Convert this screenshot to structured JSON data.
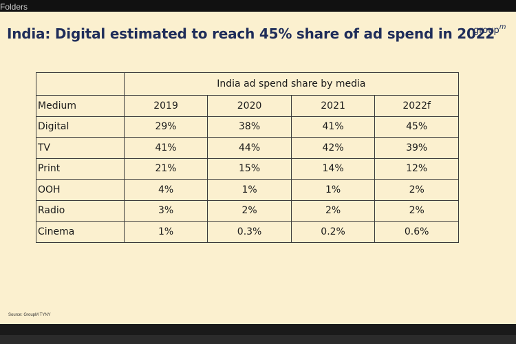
{
  "window": {
    "folders_label": "Folders"
  },
  "slide": {
    "title": "India: Digital estimated to reach 45% share of ad spend in 2022",
    "logo": {
      "main": "group",
      "sup": "m"
    },
    "table": {
      "group_header": "India ad spend share by media",
      "columns": [
        "Medium",
        "2019",
        "2020",
        "2021",
        "2022f"
      ],
      "rows": [
        [
          "Digital",
          "29%",
          "38%",
          "41%",
          "45%"
        ],
        [
          "TV",
          "41%",
          "44%",
          "42%",
          "39%"
        ],
        [
          "Print",
          "21%",
          "15%",
          "14%",
          "12%"
        ],
        [
          "OOH",
          "4%",
          "1%",
          "1%",
          "2%"
        ],
        [
          "Radio",
          "3%",
          "2%",
          "2%",
          "2%"
        ],
        [
          "Cinema",
          "1%",
          "0.3%",
          "0.2%",
          "0.6%"
        ]
      ]
    },
    "source": "Source: GroupM TYNY"
  }
}
